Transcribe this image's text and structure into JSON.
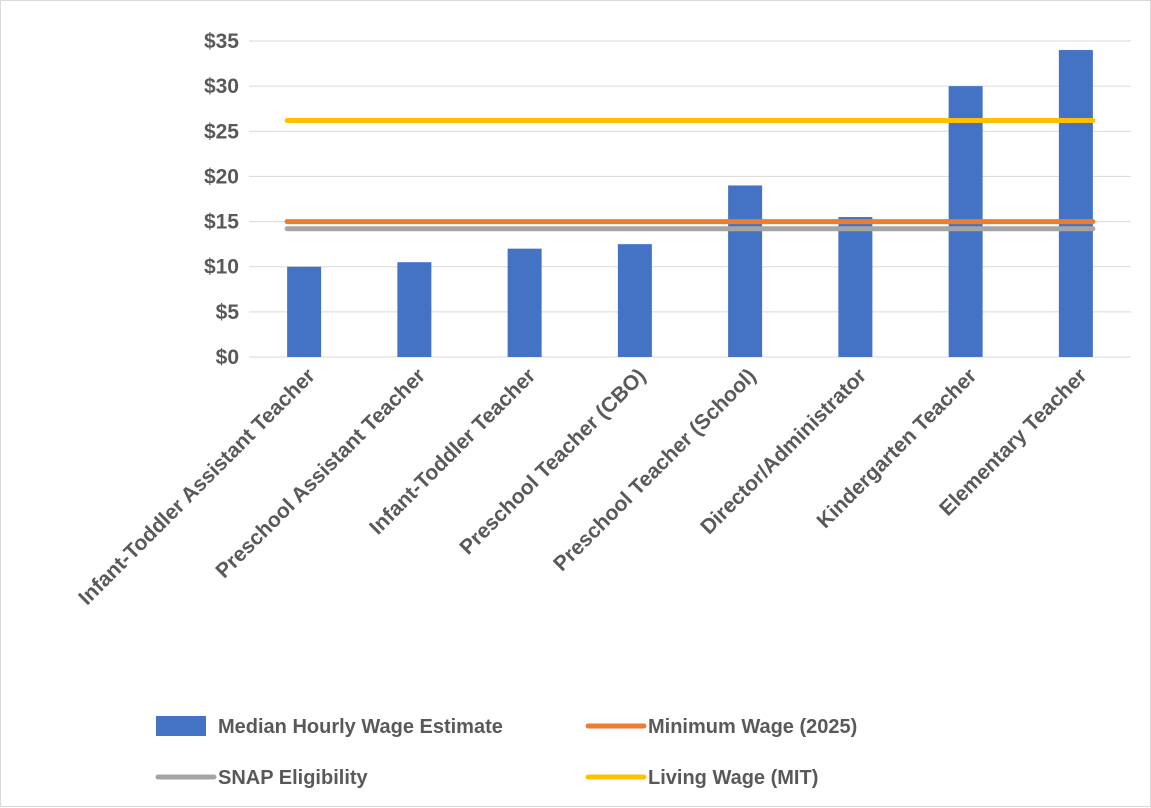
{
  "chart_data": {
    "type": "bar",
    "categories": [
      "Infant-Toddler Assistant Teacher",
      "Preschool Assistant Teacher",
      "Infant-Toddler Teacher",
      "Preschool Teacher (CBO)",
      "Preschool Teacher (School)",
      "Director/Administrator",
      "Kindergarten Teacher",
      "Elementary Teacher"
    ],
    "series": [
      {
        "name": "Median Hourly Wage Estimate",
        "kind": "bar",
        "color": "#4472c4",
        "values": [
          10,
          10.5,
          12,
          12.5,
          19,
          15.5,
          30,
          34
        ]
      }
    ],
    "reference_lines": [
      {
        "name": "Minimum Wage (2025)",
        "value": 15,
        "color": "#ed7d31"
      },
      {
        "name": "SNAP Eligibility",
        "value": 14.2,
        "color": "#a5a5a5"
      },
      {
        "name": "Living Wage (MIT)",
        "value": 26.2,
        "color": "#ffc000"
      }
    ],
    "ylim": [
      0,
      35
    ],
    "yticks": [
      0,
      5,
      10,
      15,
      20,
      25,
      30,
      35
    ],
    "ytick_labels": [
      "$0",
      "$5",
      "$10",
      "$15",
      "$20",
      "$25",
      "$30",
      "$35"
    ],
    "grid": true,
    "legend_position": "bottom",
    "xlabel": "",
    "ylabel": "",
    "title": ""
  }
}
